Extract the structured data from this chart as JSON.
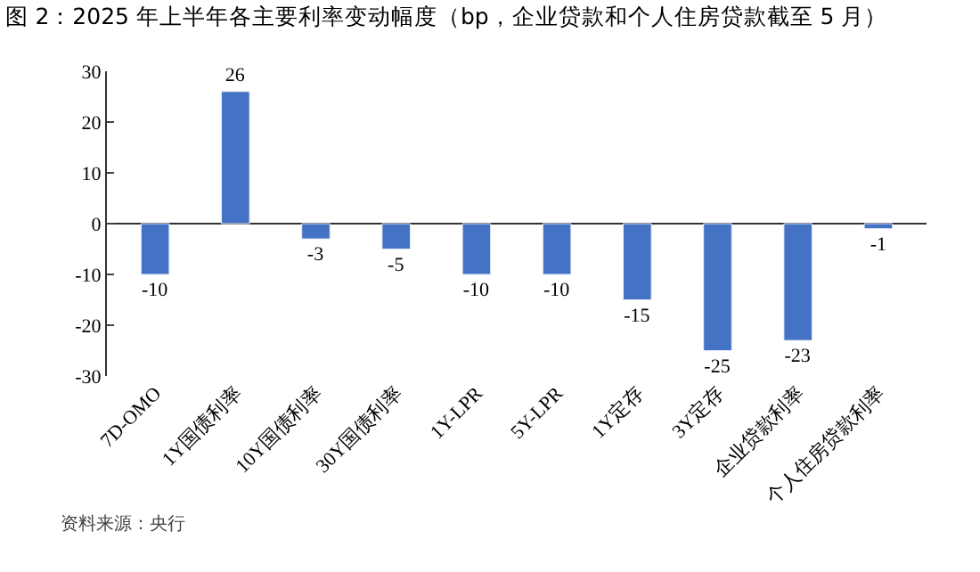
{
  "chart_data": {
    "type": "bar",
    "title": "图 2：2025 年上半年各主要利率变动幅度（bp，企业贷款和个人住房贷款截至 5 月）",
    "annotations": [
      "资料来源：央行"
    ],
    "categories": [
      "7D-OMO",
      "1Y国债利率",
      "10Y国债利率",
      "30Y国债利率",
      "1Y-LPR",
      "5Y-LPR",
      "1Y定存",
      "3Y定存",
      "企业贷款利率",
      "个人住房贷款利率"
    ],
    "values": [
      -10,
      26,
      -3,
      -5,
      -10,
      -10,
      -15,
      -25,
      -23,
      -1
    ],
    "color": "#4472c4",
    "data_labels": true,
    "ylim": [
      -30,
      30
    ],
    "yticks": [
      -30,
      -20,
      -10,
      0,
      10,
      20,
      30
    ],
    "legend": false
  }
}
